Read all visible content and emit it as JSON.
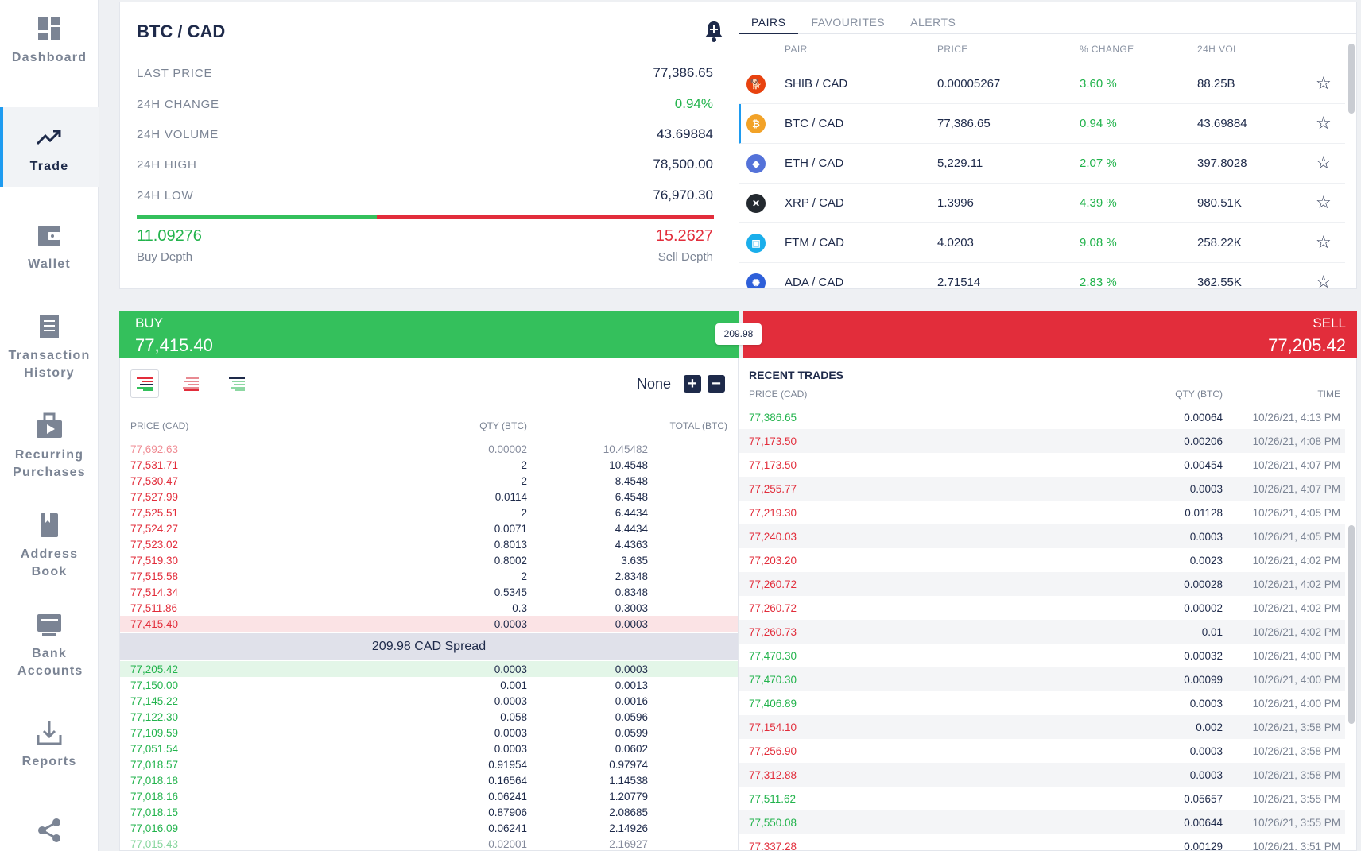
{
  "sidebar": {
    "items": [
      {
        "label": "Dashboard",
        "icon": "dashboard-icon"
      },
      {
        "label": "Trade",
        "icon": "trend-icon"
      },
      {
        "label": "Wallet",
        "icon": "wallet-icon"
      },
      {
        "label": "Transaction History",
        "icon": "receipt-icon"
      },
      {
        "label": "Recurring Purchases",
        "icon": "recurring-icon"
      },
      {
        "label": "Address Book",
        "icon": "book-icon"
      },
      {
        "label": "Bank Accounts",
        "icon": "bank-icon"
      },
      {
        "label": "Reports",
        "icon": "download-icon"
      },
      {
        "label": "",
        "icon": "share-icon"
      }
    ]
  },
  "info": {
    "pair": "BTC / CAD",
    "stats": [
      {
        "key": "LAST PRICE",
        "value": "77,386.65"
      },
      {
        "key": "24H CHANGE",
        "value": "0.94%"
      },
      {
        "key": "24H VOLUME",
        "value": "43.69884"
      },
      {
        "key": "24H HIGH",
        "value": "78,500.00"
      },
      {
        "key": "24H LOW",
        "value": "76,970.30"
      }
    ],
    "buy_depth": "11.09276",
    "buy_depth_label": "Buy Depth",
    "sell_depth": "15.2627",
    "sell_depth_label": "Sell Depth"
  },
  "pairs": {
    "tabs": [
      "PAIRS",
      "FAVOURITES",
      "ALERTS"
    ],
    "headers": {
      "pair": "PAIR",
      "price": "PRICE",
      "change": "% CHANGE",
      "vol": "24H VOL"
    },
    "rows": [
      {
        "pair": "SHIB / CAD",
        "price": "0.00005267",
        "change": "3.60 %",
        "vol": "88.25B",
        "color": "#e8420f"
      },
      {
        "pair": "BTC / CAD",
        "price": "77,386.65",
        "change": "0.94 %",
        "vol": "43.69884",
        "color": "#f2a227"
      },
      {
        "pair": "ETH / CAD",
        "price": "5,229.11",
        "change": "2.07 %",
        "vol": "397.8028",
        "color": "#5472d9"
      },
      {
        "pair": "XRP / CAD",
        "price": "1.3996",
        "change": "4.39 %",
        "vol": "980.51K",
        "color": "#23292f"
      },
      {
        "pair": "FTM / CAD",
        "price": "4.0203",
        "change": "9.08 %",
        "vol": "258.22K",
        "color": "#1aaeeb"
      },
      {
        "pair": "ADA / CAD",
        "price": "2.71514",
        "change": "2.83 %",
        "vol": "362.55K",
        "color": "#2e5fd9"
      }
    ]
  },
  "buy": {
    "label": "BUY",
    "price": "77,415.40"
  },
  "sell": {
    "label": "SELL",
    "price": "77,205.42"
  },
  "spread_chip": "209.98",
  "orderbook": {
    "grouping": "None",
    "headers": {
      "price": "PRICE (CAD)",
      "qty": "QTY (BTC)",
      "total": "TOTAL (BTC)"
    },
    "asks": [
      {
        "p": "77,692.63",
        "q": "0.00002",
        "t": "10.45482"
      },
      {
        "p": "77,531.71",
        "q": "2",
        "t": "10.4548"
      },
      {
        "p": "77,530.47",
        "q": "2",
        "t": "8.4548"
      },
      {
        "p": "77,527.99",
        "q": "0.0114",
        "t": "6.4548"
      },
      {
        "p": "77,525.51",
        "q": "2",
        "t": "6.4434"
      },
      {
        "p": "77,524.27",
        "q": "0.0071",
        "t": "4.4434"
      },
      {
        "p": "77,523.02",
        "q": "0.8013",
        "t": "4.4363"
      },
      {
        "p": "77,519.30",
        "q": "0.8002",
        "t": "3.635"
      },
      {
        "p": "77,515.58",
        "q": "2",
        "t": "2.8348"
      },
      {
        "p": "77,514.34",
        "q": "0.5345",
        "t": "0.8348"
      },
      {
        "p": "77,511.86",
        "q": "0.3",
        "t": "0.3003"
      },
      {
        "p": "77,415.40",
        "q": "0.0003",
        "t": "0.0003"
      }
    ],
    "spread": "209.98 CAD Spread",
    "bids": [
      {
        "p": "77,205.42",
        "q": "0.0003",
        "t": "0.0003"
      },
      {
        "p": "77,150.00",
        "q": "0.001",
        "t": "0.0013"
      },
      {
        "p": "77,145.22",
        "q": "0.0003",
        "t": "0.0016"
      },
      {
        "p": "77,122.30",
        "q": "0.058",
        "t": "0.0596"
      },
      {
        "p": "77,109.59",
        "q": "0.0003",
        "t": "0.0599"
      },
      {
        "p": "77,051.54",
        "q": "0.0003",
        "t": "0.0602"
      },
      {
        "p": "77,018.57",
        "q": "0.91954",
        "t": "0.97974"
      },
      {
        "p": "77,018.18",
        "q": "0.16564",
        "t": "1.14538"
      },
      {
        "p": "77,018.16",
        "q": "0.06241",
        "t": "1.20779"
      },
      {
        "p": "77,018.15",
        "q": "0.87906",
        "t": "2.08685"
      },
      {
        "p": "77,016.09",
        "q": "0.06241",
        "t": "2.14926"
      },
      {
        "p": "77,015.43",
        "q": "0.02001",
        "t": "2.16927"
      }
    ]
  },
  "recent_trades": {
    "title": "RECENT TRADES",
    "headers": {
      "price": "PRICE (CAD)",
      "qty": "QTY (BTC)",
      "time": "TIME"
    },
    "rows": [
      {
        "p": "77,386.65",
        "q": "0.00064",
        "tm": "10/26/21, 4:13 PM",
        "dir": "up"
      },
      {
        "p": "77,173.50",
        "q": "0.00206",
        "tm": "10/26/21, 4:08 PM",
        "dir": "down"
      },
      {
        "p": "77,173.50",
        "q": "0.00454",
        "tm": "10/26/21, 4:07 PM",
        "dir": "down"
      },
      {
        "p": "77,255.77",
        "q": "0.0003",
        "tm": "10/26/21, 4:07 PM",
        "dir": "down"
      },
      {
        "p": "77,219.30",
        "q": "0.01128",
        "tm": "10/26/21, 4:05 PM",
        "dir": "down"
      },
      {
        "p": "77,240.03",
        "q": "0.0003",
        "tm": "10/26/21, 4:05 PM",
        "dir": "down"
      },
      {
        "p": "77,203.20",
        "q": "0.0023",
        "tm": "10/26/21, 4:02 PM",
        "dir": "down"
      },
      {
        "p": "77,260.72",
        "q": "0.00028",
        "tm": "10/26/21, 4:02 PM",
        "dir": "down"
      },
      {
        "p": "77,260.72",
        "q": "0.00002",
        "tm": "10/26/21, 4:02 PM",
        "dir": "down"
      },
      {
        "p": "77,260.73",
        "q": "0.01",
        "tm": "10/26/21, 4:02 PM",
        "dir": "down"
      },
      {
        "p": "77,470.30",
        "q": "0.00032",
        "tm": "10/26/21, 4:00 PM",
        "dir": "up"
      },
      {
        "p": "77,470.30",
        "q": "0.00099",
        "tm": "10/26/21, 4:00 PM",
        "dir": "up"
      },
      {
        "p": "77,406.89",
        "q": "0.0003",
        "tm": "10/26/21, 4:00 PM",
        "dir": "up"
      },
      {
        "p": "77,154.10",
        "q": "0.002",
        "tm": "10/26/21, 3:58 PM",
        "dir": "down"
      },
      {
        "p": "77,256.90",
        "q": "0.0003",
        "tm": "10/26/21, 3:58 PM",
        "dir": "down"
      },
      {
        "p": "77,312.88",
        "q": "0.0003",
        "tm": "10/26/21, 3:58 PM",
        "dir": "down"
      },
      {
        "p": "77,511.62",
        "q": "0.05657",
        "tm": "10/26/21, 3:55 PM",
        "dir": "up"
      },
      {
        "p": "77,550.08",
        "q": "0.00644",
        "tm": "10/26/21, 3:55 PM",
        "dir": "up"
      },
      {
        "p": "77,337.28",
        "q": "0.00129",
        "tm": "10/26/21, 3:51 PM",
        "dir": "down"
      }
    ]
  }
}
